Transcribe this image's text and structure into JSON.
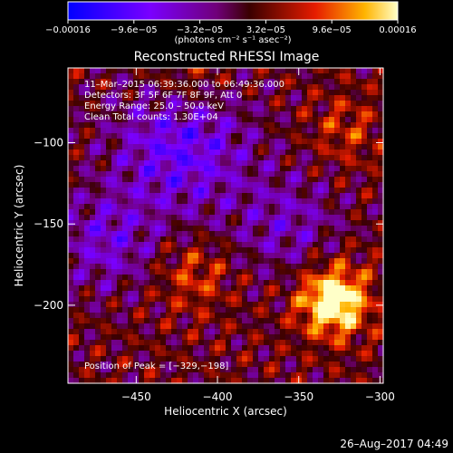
{
  "chart_data": {
    "type": "heatmap",
    "title": "Reconstructed RHESSI Image",
    "xlabel": "Heliocentric X (arcsec)",
    "ylabel": "Heliocentric Y (arcsec)",
    "xlim": [
      -492,
      -298
    ],
    "ylim": [
      -248,
      -54
    ],
    "x_ticks": [
      -450,
      -400,
      -350,
      -300
    ],
    "y_ticks": [
      -100,
      -150,
      -200
    ],
    "x_tick_labels": [
      "−450",
      "−400",
      "−350",
      "−300"
    ],
    "y_tick_labels": [
      "−100",
      "−150",
      "−200"
    ],
    "colorbar": {
      "range": [
        -0.00016,
        0.00016
      ],
      "tick_values": [
        -0.00016,
        -9.6e-05,
        -3.2e-05,
        3.2e-05,
        9.6e-05,
        0.00016
      ],
      "tick_labels": [
        "−0.00016",
        "−9.6e−05",
        "−3.2e−05",
        "3.2e−05",
        "9.6e−05",
        "0.00016"
      ],
      "unit_label": "(photons cm⁻² s⁻¹ asec⁻²)"
    },
    "annotations": [
      "11–Mar–2015 06:39:36.000 to 06:49:36.000",
      "Detectors: 3F 5F 6F 7F 8F 9F, Att 0",
      "Energy Range: 25.0 – 50.0 keV",
      "Clean     Total counts: 1.30E+04"
    ],
    "peak_label": "Position of Peak = [−329,−198]",
    "peak_position": [
      -329,
      -198
    ],
    "grid": false
  },
  "footer": {
    "timestamp": "26–Aug–2017 04:49"
  }
}
